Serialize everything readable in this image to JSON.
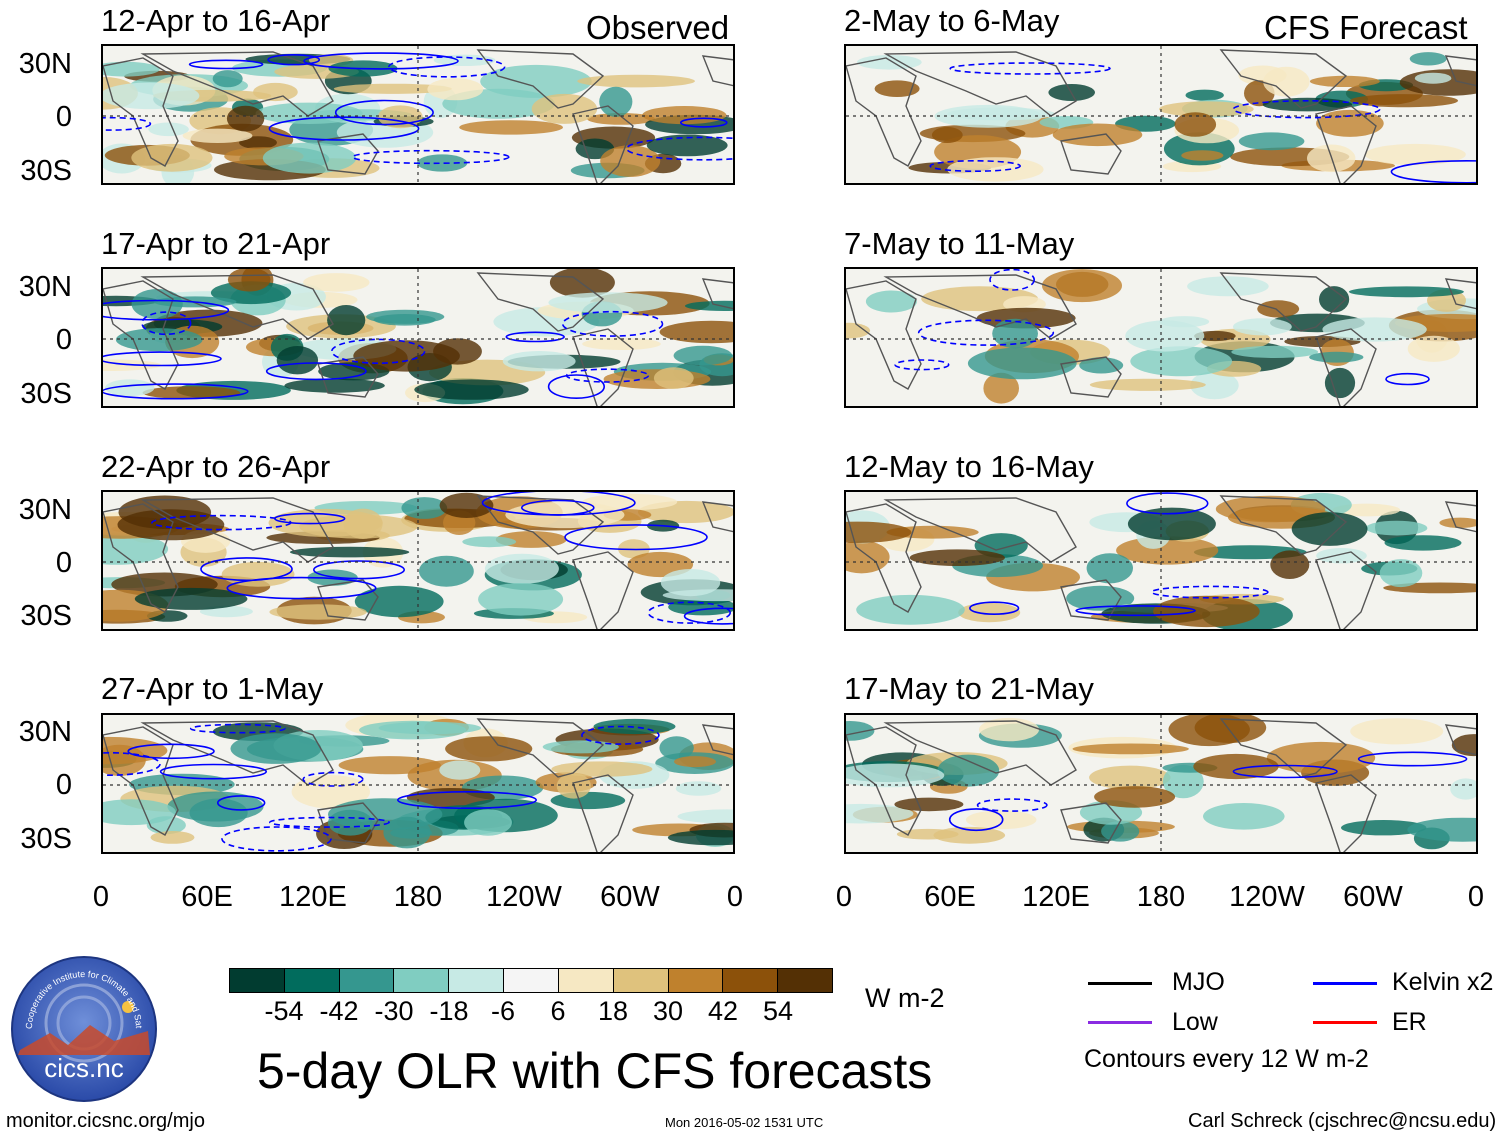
{
  "header": {
    "observed_label": "Observed",
    "forecast_label": "CFS Forecast"
  },
  "observed_panels": [
    {
      "title": "12-Apr to 16-Apr"
    },
    {
      "title": "17-Apr to 21-Apr"
    },
    {
      "title": "22-Apr to 26-Apr"
    },
    {
      "title": "27-Apr to 1-May"
    }
  ],
  "forecast_panels": [
    {
      "title": "2-May to 6-May"
    },
    {
      "title": "7-May to 11-May"
    },
    {
      "title": "12-May to 16-May"
    },
    {
      "title": "17-May to 21-May"
    }
  ],
  "axes": {
    "lat_labels": [
      "30N",
      "0",
      "30S"
    ],
    "lon_labels": [
      "0",
      "60E",
      "120E",
      "180",
      "120W",
      "60W",
      "0"
    ]
  },
  "colorbar": {
    "units": "W m-2",
    "tick_labels": [
      "-54",
      "-42",
      "-30",
      "-18",
      "-6",
      "6",
      "18",
      "30",
      "42",
      "54"
    ],
    "colors": [
      "#013c30",
      "#016c5d",
      "#35978f",
      "#80cdc1",
      "#c7eae5",
      "#f5f5f5",
      "#f6e8c3",
      "#dfc27d",
      "#bf812d",
      "#8c510a",
      "#543005"
    ]
  },
  "legend": {
    "mjo": {
      "label": "MJO",
      "color": "#000000"
    },
    "kelvin": {
      "label": "Kelvin x2",
      "color": "#0000ff"
    },
    "low": {
      "label": "Low",
      "color": "#8a2be2"
    },
    "er": {
      "label": "ER",
      "color": "#ff0000"
    },
    "contour_note": "Contours every 12 W m-2"
  },
  "title": "5-day OLR with CFS forecasts",
  "footer": {
    "url": "monitor.cicsnc.org/mjo",
    "timestamp": "Mon 2016-05-02 1531 UTC",
    "author": "Carl Schreck (cjschrec@ncsu.edu)"
  },
  "logo": {
    "text": "cics.nc",
    "ring_text": "Cooperative Institute for Climate and Satellites"
  }
}
